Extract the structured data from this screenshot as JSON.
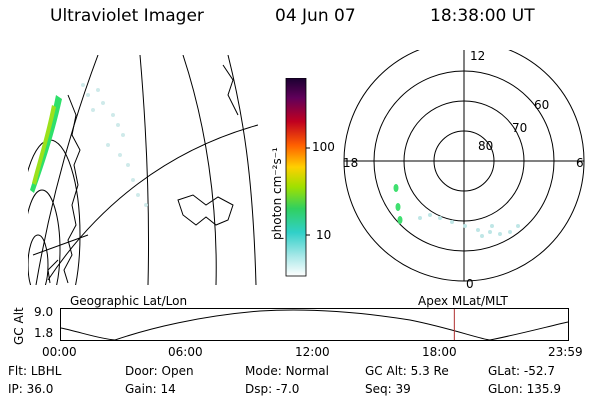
{
  "header": {
    "instrument": "Ultraviolet Imager",
    "date": "04 Jun 07",
    "time": "18:38:00 UT"
  },
  "colorbar": {
    "unit_label": "photon cm⁻²s⁻¹",
    "ticks": [
      "100",
      "10"
    ]
  },
  "polar_plot": {
    "mlt_labels": {
      "top": "12",
      "left": "18",
      "right": "6",
      "bottom": "0"
    },
    "lat_labels": [
      "60",
      "70",
      "80"
    ]
  },
  "timeline": {
    "left_label": "Geographic Lat/Lon",
    "right_label": "Apex MLat/MLT",
    "axis_label": "GC Alt",
    "y_ticks": [
      "9.0",
      "1.8"
    ],
    "x_ticks": [
      "00:00",
      "06:00",
      "12:00",
      "18:00",
      "23:59"
    ],
    "cursor_time_hours": 18.63,
    "colors": {
      "cursor": "#b03030"
    }
  },
  "status": {
    "row1": [
      {
        "label": "Flt:",
        "value": "LBHL"
      },
      {
        "label": "Door:",
        "value": "Open"
      },
      {
        "label": "Mode:",
        "value": "Normal"
      },
      {
        "label": "GC Alt:",
        "value": "5.3 Re"
      },
      {
        "label": "GLat:",
        "value": "-52.7"
      }
    ],
    "row2": [
      {
        "label": "IP:",
        "value": "36.0"
      },
      {
        "label": "Gain:",
        "value": "14"
      },
      {
        "label": "Dsp:",
        "value": "-7.0"
      },
      {
        "label": "Seq:",
        "value": "39"
      },
      {
        "label": "GLon:",
        "value": "135.9"
      }
    ]
  }
}
